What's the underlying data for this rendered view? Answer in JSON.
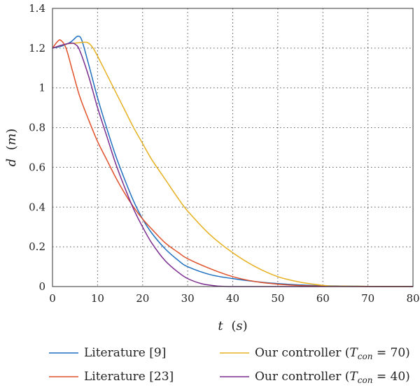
{
  "chart_data": {
    "type": "line",
    "xlabel": {
      "main": "t",
      "unit": "s"
    },
    "ylabel": {
      "main": "d",
      "unit": "m"
    },
    "xlim": [
      0,
      80
    ],
    "ylim": [
      0,
      1.4
    ],
    "xticks": [
      0,
      10,
      20,
      30,
      40,
      50,
      60,
      70,
      80
    ],
    "yticks": [
      0,
      0.2,
      0.4,
      0.6,
      0.8,
      1,
      1.2,
      1.4
    ],
    "xtick_labels": [
      "0",
      "10",
      "20",
      "30",
      "40",
      "50",
      "60",
      "70",
      "80"
    ],
    "ytick_labels": [
      "0",
      "0.2",
      "0.4",
      "0.6",
      "0.8",
      "1",
      "1.2",
      "1.4"
    ],
    "grid": true,
    "legend_position": "bottom",
    "series": [
      {
        "name": "Literature [9]",
        "color": "#1f6fbf",
        "x": [
          0,
          2,
          4,
          5,
          5.7,
          6.5,
          8,
          10,
          12,
          14,
          16,
          18,
          20,
          22,
          25,
          28,
          30,
          35,
          40,
          45,
          50,
          55,
          60,
          70,
          80
        ],
        "y": [
          1.2,
          1.21,
          1.23,
          1.25,
          1.26,
          1.24,
          1.12,
          0.95,
          0.8,
          0.66,
          0.54,
          0.43,
          0.34,
          0.27,
          0.19,
          0.13,
          0.1,
          0.06,
          0.04,
          0.025,
          0.015,
          0.008,
          0.004,
          0.001,
          0
        ]
      },
      {
        "name": "Literature [23]",
        "color": "#e0502a",
        "x": [
          0,
          1,
          1.8,
          3,
          4.5,
          6,
          8,
          10,
          12,
          14,
          16,
          18,
          20,
          22,
          25,
          28,
          30,
          35,
          40,
          45,
          50,
          55,
          60,
          70,
          80
        ],
        "y": [
          1.2,
          1.23,
          1.24,
          1.2,
          1.08,
          0.96,
          0.84,
          0.73,
          0.64,
          0.55,
          0.47,
          0.4,
          0.34,
          0.29,
          0.22,
          0.17,
          0.14,
          0.09,
          0.05,
          0.025,
          0.012,
          0.005,
          0.002,
          0,
          0
        ]
      },
      {
        "name": "Our controller (Tcon = 70)",
        "label_main": "Our controller (",
        "label_sym": "T",
        "label_sub": "con",
        "label_tail": " = 70)",
        "color": "#e6b020",
        "x": [
          0,
          3,
          5,
          7,
          8,
          9,
          10,
          12,
          14,
          16,
          18,
          20,
          22,
          25,
          28,
          30,
          35,
          40,
          45,
          50,
          55,
          60,
          62,
          65,
          70,
          80
        ],
        "y": [
          1.2,
          1.22,
          1.225,
          1.23,
          1.225,
          1.2,
          1.16,
          1.07,
          0.98,
          0.89,
          0.8,
          0.72,
          0.64,
          0.54,
          0.44,
          0.38,
          0.26,
          0.17,
          0.1,
          0.05,
          0.022,
          0.006,
          0.002,
          0.002,
          0.001,
          0
        ]
      },
      {
        "name": "Our controller (Tcon = 40)",
        "label_main": "Our controller (",
        "label_sym": "T",
        "label_sub": "con",
        "label_tail": " = 40)",
        "color": "#7b2d8e",
        "x": [
          0,
          2,
          4,
          5,
          6,
          8,
          10,
          12,
          14,
          16,
          18,
          20,
          22,
          25,
          28,
          30,
          33,
          36,
          38,
          40,
          45,
          80
        ],
        "y": [
          1.2,
          1.215,
          1.225,
          1.22,
          1.19,
          1.06,
          0.9,
          0.76,
          0.62,
          0.5,
          0.39,
          0.3,
          0.22,
          0.13,
          0.07,
          0.04,
          0.015,
          0.004,
          0.001,
          0,
          0,
          0
        ]
      }
    ]
  }
}
